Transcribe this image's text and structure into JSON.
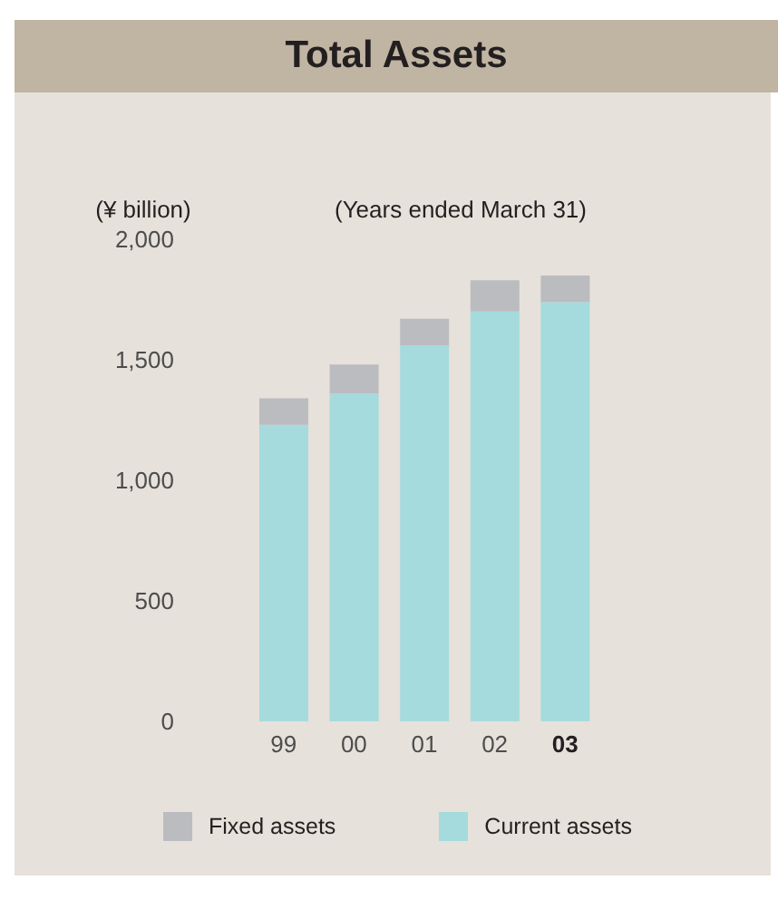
{
  "chart_data": {
    "type": "bar",
    "title": "Total Assets",
    "subtitle": "(Years ended March 31)",
    "ylabel": "(¥ billion)",
    "categories": [
      "99",
      "00",
      "01",
      "02",
      "03"
    ],
    "series": [
      {
        "name": "Current assets",
        "color": "#a5dbdd",
        "values": [
          1230,
          1360,
          1560,
          1700,
          1740
        ]
      },
      {
        "name": "Fixed assets",
        "color": "#bbbcc0",
        "values": [
          110,
          120,
          110,
          130,
          110
        ]
      }
    ],
    "stacked": true,
    "ylim": [
      0,
      2000
    ],
    "yticks": [
      0,
      500,
      {
        "value": 1000,
        "label": "1,000"
      },
      {
        "value": 1500,
        "label": "1,500"
      },
      {
        "value": 2000,
        "label": "2,000"
      }
    ],
    "legend": "bottom"
  }
}
